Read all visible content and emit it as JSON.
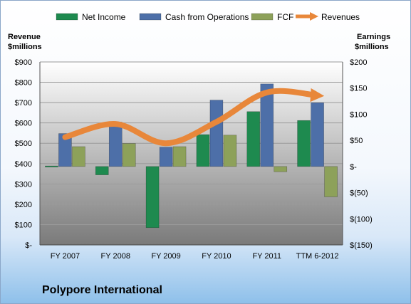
{
  "chart_data": {
    "type": "bar",
    "title": "Polypore International",
    "categories": [
      "FY 2007",
      "FY 2008",
      "FY 2009",
      "FY 2010",
      "FY 2011",
      "TTM 6-2012"
    ],
    "left_axis": {
      "label_line1": "Revenue",
      "label_line2": "$millions",
      "ylim": [
        0,
        900
      ],
      "ticks": [
        "$-",
        "$100",
        "$200",
        "$300",
        "$400",
        "$500",
        "$600",
        "$700",
        "$800",
        "$900"
      ]
    },
    "right_axis": {
      "label_line1": "Earnings",
      "label_line2": "$millions",
      "ylim": [
        -150,
        200
      ],
      "ticks": [
        "$(150)",
        "$(100)",
        "$(50)",
        "$-",
        "$50",
        "$100",
        "$150",
        "$200"
      ]
    },
    "series": [
      {
        "name": "Net Income",
        "axis": "right",
        "kind": "bar",
        "color": "#1e8a4f",
        "values": [
          1,
          -16,
          -117,
          61,
          105,
          88
        ]
      },
      {
        "name": "Cash from Operations",
        "axis": "right",
        "kind": "bar",
        "color": "#4d6fa8",
        "values": [
          63,
          85,
          37,
          127,
          158,
          122
        ]
      },
      {
        "name": "FCF",
        "axis": "right",
        "kind": "bar",
        "color": "#8da15a",
        "values": [
          38,
          44,
          38,
          60,
          -10,
          -58
        ]
      },
      {
        "name": "Revenues",
        "axis": "left",
        "kind": "line",
        "color": "#e8873a",
        "values": [
          530,
          595,
          500,
          605,
          750,
          735
        ]
      }
    ],
    "grid": true,
    "legend": "top"
  }
}
